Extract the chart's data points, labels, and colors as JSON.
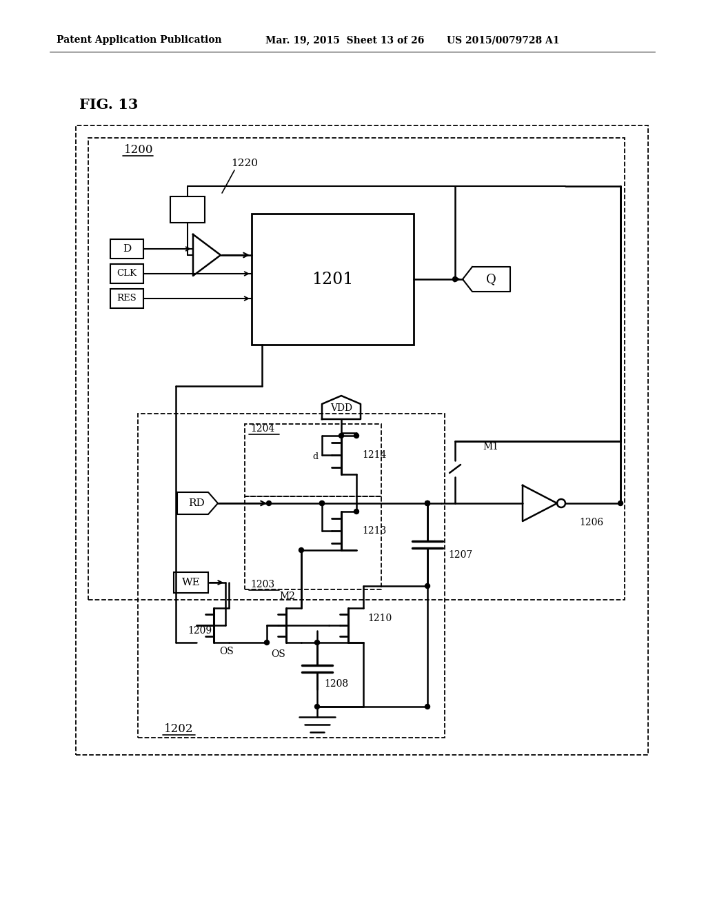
{
  "header_left": "Patent Application Publication",
  "header_mid": "Mar. 19, 2015  Sheet 13 of 26",
  "header_right": "US 2015/0079728 A1",
  "fig_label": "FIG. 13",
  "background_color": "#ffffff"
}
